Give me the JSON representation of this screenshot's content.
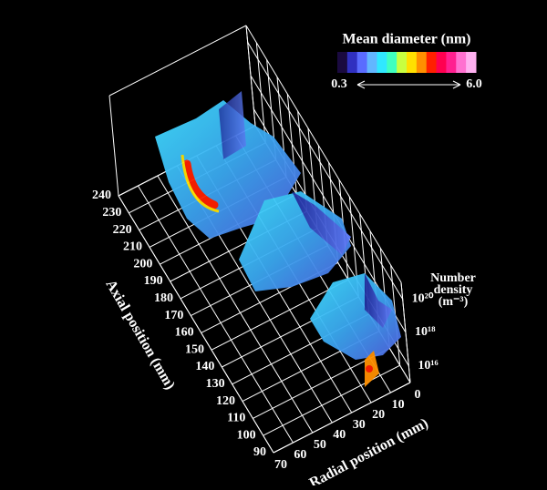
{
  "chart_data": {
    "type": "surface3d",
    "x_label": "Axial position (mm)",
    "y_label": "Radial position (mm)",
    "z_label_lines": [
      "Number",
      "density",
      "(m⁻³)"
    ],
    "xlim": [
      90,
      240
    ],
    "xticks": [
      90,
      100,
      110,
      120,
      130,
      140,
      150,
      160,
      170,
      180,
      190,
      200,
      210,
      220,
      230,
      240
    ],
    "ylim": [
      70,
      0
    ],
    "yticks": [
      70,
      60,
      50,
      40,
      30,
      20,
      10,
      0
    ],
    "zlim": [
      1000000000000000.0,
      1e+21
    ],
    "zlog": true,
    "zticks": [
      {
        "value": 1e+16,
        "label": "10¹⁶"
      },
      {
        "value": 1e+18,
        "label": "10¹⁸"
      },
      {
        "value": 1e+20,
        "label": "10²⁰"
      }
    ],
    "colorbar": {
      "title": "Mean diameter (nm)",
      "lim": [
        0.3,
        {
          "value": 6,
          "label": "6.0"
        }
      ],
      "colors": [
        "#1a0a40",
        "#3030c0",
        "#5a6cff",
        "#62b6ff",
        "#30e8ff",
        "#40ffc0",
        "#c8ff40",
        "#ffe000",
        "#ff9000",
        "#ff2000",
        "#ff0050",
        "#ff2090",
        "#ff70d0",
        "#ffb0f0"
      ]
    }
  }
}
